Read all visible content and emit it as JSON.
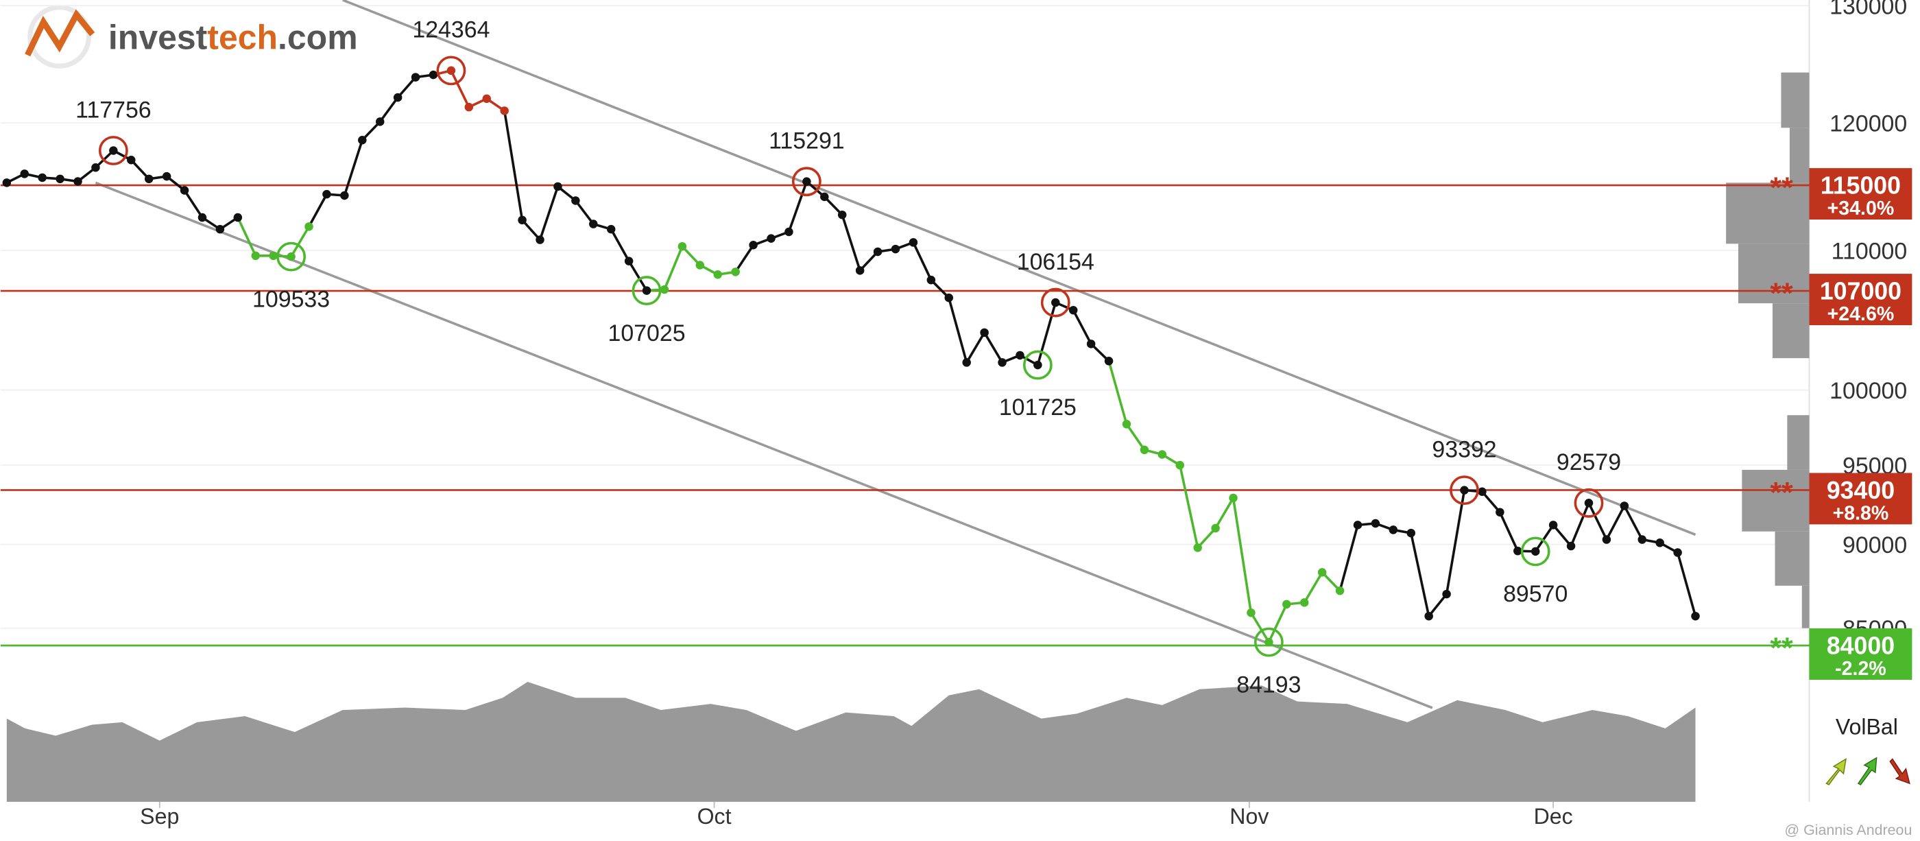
{
  "logo": [
    "invest",
    "tech",
    ".com"
  ],
  "watermark": "@ Giannis Andreou",
  "chart_data": {
    "type": "line",
    "yscale": "log",
    "grid": true,
    "ylim": [
      75500,
      130500
    ],
    "yticks": [
      85000,
      90000,
      95000,
      100000,
      110000,
      120000,
      130000
    ],
    "xlim": [
      0,
      95
    ],
    "xticks": [
      {
        "value": 8.6,
        "label": "Sep"
      },
      {
        "value": 39.8,
        "label": "Oct"
      },
      {
        "value": 69.9,
        "label": "Nov"
      },
      {
        "value": 87.0,
        "label": "Dec"
      }
    ],
    "values": [
      115200,
      115900,
      115600,
      115500,
      115300,
      116400,
      117756,
      117000,
      115500,
      115700,
      114600,
      112500,
      111600,
      112500,
      109600,
      109600,
      109533,
      111800,
      114300,
      114200,
      118600,
      120100,
      122100,
      123800,
      124000,
      124364,
      121300,
      122000,
      121000,
      112300,
      110800,
      114900,
      113800,
      112000,
      111600,
      109200,
      107025,
      107100,
      110300,
      108900,
      108200,
      108400,
      110400,
      110900,
      111400,
      115291,
      114100,
      112700,
      108500,
      109900,
      110100,
      110600,
      107800,
      106500,
      101900,
      104000,
      101900,
      102400,
      101725,
      106154,
      105600,
      103200,
      102000,
      97700,
      96000,
      95700,
      95000,
      89800,
      91000,
      92900,
      85900,
      84193,
      86400,
      86500,
      88300,
      87200,
      91200,
      91300,
      90900,
      90700,
      85700,
      87000,
      93392,
      93300,
      92000,
      89600,
      89570,
      91200,
      89900,
      92579,
      90300,
      92400,
      90300,
      90100,
      89500,
      85700
    ],
    "point_colors": [
      "#111",
      "#111",
      "#111",
      "#111",
      "#111",
      "#111",
      "#111",
      "#111",
      "#111",
      "#111",
      "#111",
      "#111",
      "#111",
      "#111",
      "#4cb82c",
      "#4cb82c",
      "#4cb82c",
      "#4cb82c",
      "#111",
      "#111",
      "#111",
      "#111",
      "#111",
      "#111",
      "#111",
      "#c0341d",
      "#c0341d",
      "#c0341d",
      "#c0341d",
      "#111",
      "#111",
      "#111",
      "#111",
      "#111",
      "#111",
      "#111",
      "#111",
      "#4cb82c",
      "#4cb82c",
      "#4cb82c",
      "#4cb82c",
      "#4cb82c",
      "#111",
      "#111",
      "#111",
      "#111",
      "#111",
      "#111",
      "#111",
      "#111",
      "#111",
      "#111",
      "#111",
      "#111",
      "#111",
      "#111",
      "#111",
      "#111",
      "#111",
      "#111",
      "#111",
      "#111",
      "#111",
      "#4cb82c",
      "#4cb82c",
      "#4cb82c",
      "#4cb82c",
      "#4cb82c",
      "#4cb82c",
      "#4cb82c",
      "#4cb82c",
      "#4cb82c",
      "#4cb82c",
      "#4cb82c",
      "#4cb82c",
      "#4cb82c",
      "#111",
      "#111",
      "#111",
      "#111",
      "#111",
      "#111",
      "#111",
      "#111",
      "#111",
      "#111",
      "#111",
      "#111",
      "#111",
      "#111",
      "#111",
      "#111",
      "#111",
      "#111",
      "#111",
      "#111"
    ],
    "annotations": [
      {
        "index": 6,
        "kind": "high"
      },
      {
        "index": 16,
        "kind": "low"
      },
      {
        "index": 25,
        "kind": "high"
      },
      {
        "index": 36,
        "kind": "low"
      },
      {
        "index": 45,
        "kind": "high"
      },
      {
        "index": 58,
        "kind": "low"
      },
      {
        "index": 59,
        "kind": "high"
      },
      {
        "index": 71,
        "kind": "low"
      },
      {
        "index": 82,
        "kind": "high"
      },
      {
        "index": 86,
        "kind": "low"
      },
      {
        "index": 89,
        "kind": "high"
      }
    ],
    "annotation_colors": {
      "high": "#c0341d",
      "low": "#4cb82c"
    },
    "trend_lines": [
      {
        "start": {
          "x": 18.9,
          "value": 130500
        },
        "end": {
          "x": 95,
          "value": 90600
        }
      },
      {
        "start": {
          "x": 5.0,
          "value": 115200
        },
        "end": {
          "x": 80.2,
          "value": 80500
        }
      }
    ],
    "trend_color": "#9a9a9a",
    "level_marker": "**",
    "levels": [
      {
        "value": 115000,
        "change": "+34.0%",
        "color": "#c0341d"
      },
      {
        "value": 107000,
        "change": "+24.6%",
        "color": "#c0341d"
      },
      {
        "value": 93400,
        "change": "+8.8%",
        "color": "#c0341d"
      },
      {
        "value": 84000,
        "change": "-2.2%",
        "color": "#4cb82c"
      }
    ],
    "volume_balance": {
      "label": "VolBal",
      "color": "#999",
      "ylim": [
        0,
        100
      ],
      "x": [
        0,
        1.03,
        2.75,
        4.8,
        6.5,
        8.6,
        10.7,
        13.4,
        16.2,
        18.9,
        22.4,
        25.8,
        27.9,
        29.3,
        32,
        34.8,
        36.8,
        39.6,
        41.6,
        44.4,
        47.2,
        49.9,
        50.9,
        53,
        54.7,
        58.2,
        60.2,
        63,
        65,
        67.1,
        70.6,
        72.6,
        75.4,
        78.8,
        81.6,
        84.3,
        86.4,
        89.2,
        91.2,
        93.3,
        95
      ],
      "values": [
        68,
        60,
        54,
        63,
        65,
        50,
        65,
        70,
        57,
        75,
        77,
        75,
        85,
        98,
        85,
        85,
        75,
        80,
        75,
        58,
        73,
        70,
        62,
        87,
        92,
        68,
        72,
        85,
        79,
        92,
        95,
        82,
        80,
        65,
        83,
        75,
        65,
        75,
        70,
        60,
        77
      ]
    },
    "volume_profile": {
      "color": "#999",
      "xlim": [
        0,
        100
      ],
      "bins": [
        124200,
        119600,
        115200,
        110500,
        106100,
        102200,
        98300,
        94700,
        90800,
        87500,
        85000
      ],
      "values": [
        23,
        16,
        68,
        58,
        30,
        0,
        18,
        55,
        28,
        6
      ]
    }
  }
}
